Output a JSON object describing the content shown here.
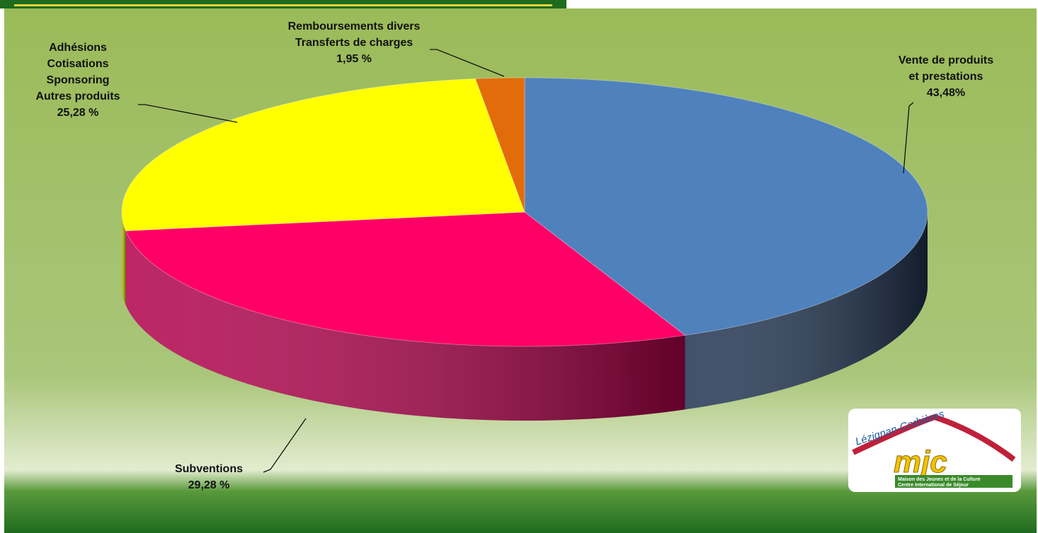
{
  "chart_data": {
    "type": "pie3d",
    "categories": [
      [
        "Vente de produits",
        "et prestations"
      ],
      [
        "Subventions"
      ],
      [
        "Adhésions",
        "Cotisations",
        "Sponsoring",
        "Autres produits"
      ],
      [
        "Remboursements divers",
        "Transferts de charges"
      ]
    ],
    "values": [
      43.48,
      29.28,
      25.28,
      1.95
    ],
    "value_labels": [
      "43,48%",
      "29,28 %",
      "25,28 %",
      "1,95 %"
    ],
    "colors": [
      "#4f81bd",
      "#ff0066",
      "#ffff00",
      "#e36c0a"
    ],
    "side_colors": [
      "#1f3350",
      "#b0004a",
      "#b3b300",
      "#9c4a07"
    ]
  },
  "logo": {
    "town": "Lézignan-Corbières",
    "line1": "Maison des Jeunes et de la Culture",
    "line2": "Centre International de Séjour"
  }
}
